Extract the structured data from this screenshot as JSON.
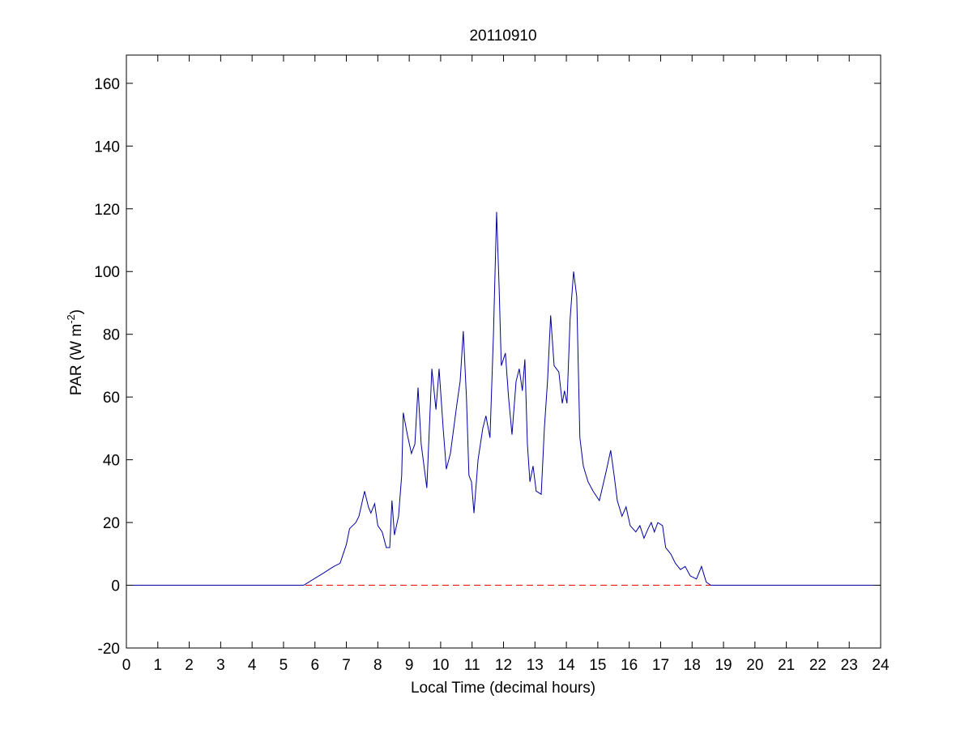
{
  "chart_data": {
    "type": "line",
    "title": "20110910",
    "xlabel": "Local Time (decimal hours)",
    "ylabel": {
      "text": "PAR (W m",
      "superscript": "-2",
      "suffix": ")"
    },
    "xlim": [
      0,
      24
    ],
    "ylim": [
      -20,
      169
    ],
    "xticks": [
      0,
      1,
      2,
      3,
      4,
      5,
      6,
      7,
      8,
      9,
      10,
      11,
      12,
      13,
      14,
      15,
      16,
      17,
      18,
      19,
      20,
      21,
      22,
      23,
      24
    ],
    "yticks": [
      -20,
      0,
      20,
      40,
      60,
      80,
      100,
      120,
      140,
      160
    ],
    "grid": false,
    "series": [
      {
        "color": "#0000a0",
        "x": [
          0,
          5.64,
          6.29,
          6.6,
          6.8,
          7.0,
          7.1,
          7.3,
          7.4,
          7.58,
          7.7,
          7.78,
          7.9,
          8.0,
          8.14,
          8.27,
          8.38,
          8.45,
          8.53,
          8.66,
          8.76,
          8.81,
          8.94,
          9.07,
          9.18,
          9.28,
          9.38,
          9.56,
          9.72,
          9.85,
          9.95,
          10.08,
          10.18,
          10.31,
          10.52,
          10.62,
          10.72,
          10.82,
          10.9,
          10.98,
          11.06,
          11.19,
          11.34,
          11.44,
          11.57,
          11.68,
          11.78,
          11.86,
          11.93,
          12.06,
          12.16,
          12.27,
          12.4,
          12.5,
          12.6,
          12.68,
          12.76,
          12.84,
          12.94,
          13.04,
          13.2,
          13.3,
          13.4,
          13.5,
          13.61,
          13.76,
          13.87,
          13.94,
          14.02,
          14.12,
          14.23,
          14.33,
          14.43,
          14.54,
          14.69,
          14.85,
          15.05,
          15.26,
          15.41,
          15.52,
          15.62,
          15.77,
          15.9,
          16.03,
          16.21,
          16.34,
          16.47,
          16.6,
          16.7,
          16.8,
          16.91,
          17.06,
          17.16,
          17.32,
          17.47,
          17.63,
          17.78,
          17.94,
          18.14,
          18.3,
          18.45,
          18.6,
          24
        ],
        "values": [
          0,
          0,
          4,
          6,
          7,
          13,
          18,
          20,
          22,
          30,
          25,
          23,
          26,
          19,
          17,
          12,
          12,
          27,
          16,
          22,
          35,
          55,
          48,
          42,
          45,
          63,
          45,
          31,
          69,
          56,
          69,
          50,
          37,
          42,
          58,
          65,
          81,
          60,
          35,
          33,
          23,
          40,
          50,
          54,
          47,
          80,
          119,
          95,
          70,
          74,
          60,
          48,
          65,
          69,
          62,
          72,
          45,
          33,
          38,
          30,
          29,
          50,
          65,
          86,
          70,
          68,
          58,
          62,
          58,
          85,
          100,
          92,
          47,
          38,
          33,
          30,
          27,
          36,
          43,
          35,
          27,
          22,
          25,
          19,
          17,
          19,
          15,
          18,
          20,
          17,
          20,
          19,
          12,
          10,
          7,
          5,
          6,
          3,
          2,
          6,
          1,
          0,
          0
        ]
      }
    ],
    "reference_lines": [
      {
        "y": 0,
        "color": "#ff0000",
        "style": "dashed"
      }
    ]
  }
}
